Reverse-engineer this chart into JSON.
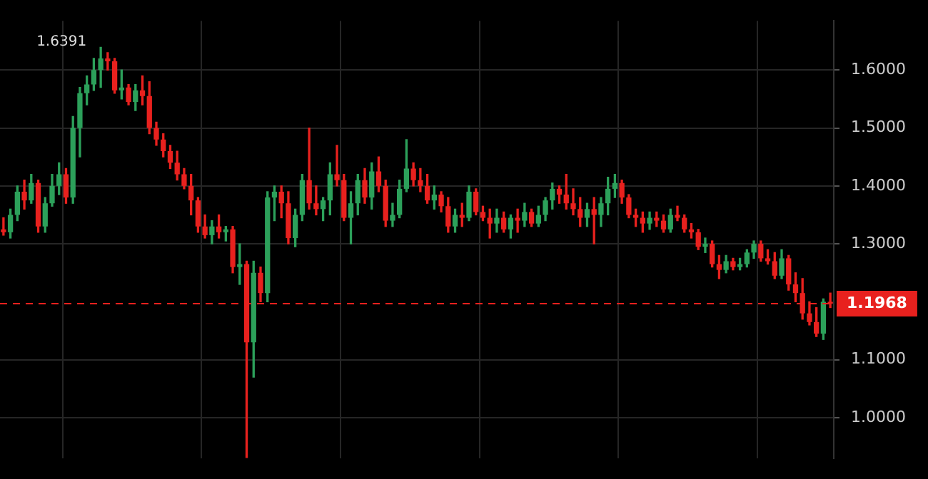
{
  "chart_data": {
    "type": "candlestick",
    "categories": [
      null,
      null,
      null,
      null,
      null,
      null,
      null,
      null,
      null,
      null,
      null,
      null,
      null,
      null,
      null,
      null,
      null,
      null,
      null,
      null,
      null,
      null,
      null,
      null,
      null,
      null,
      null,
      null,
      null,
      null,
      null,
      null,
      null,
      null,
      null,
      null,
      null,
      null,
      null,
      null,
      null,
      null,
      null,
      null,
      null,
      null,
      null,
      null,
      null,
      null,
      null,
      null,
      null,
      null,
      null,
      null,
      null,
      null,
      null,
      null,
      null,
      null,
      null,
      null,
      null,
      null,
      null,
      null,
      null,
      null,
      null,
      null,
      null,
      null,
      null,
      null,
      null,
      null,
      null,
      null,
      null,
      null,
      null,
      null,
      null,
      null,
      null,
      null,
      null,
      null,
      null,
      null,
      null,
      null,
      null,
      null,
      null,
      null,
      null,
      null,
      null,
      null,
      null,
      null,
      null,
      null,
      null,
      null,
      null,
      null,
      null,
      null,
      null,
      null,
      null,
      null,
      null,
      null,
      null,
      null
    ],
    "ohlc": [
      [
        1.325,
        1.345,
        1.315,
        1.32
      ],
      [
        1.32,
        1.36,
        1.31,
        1.35
      ],
      [
        1.35,
        1.4,
        1.34,
        1.39
      ],
      [
        1.39,
        1.41,
        1.36,
        1.375
      ],
      [
        1.375,
        1.42,
        1.37,
        1.405
      ],
      [
        1.405,
        1.41,
        1.32,
        1.33
      ],
      [
        1.33,
        1.38,
        1.32,
        1.37
      ],
      [
        1.37,
        1.42,
        1.365,
        1.4
      ],
      [
        1.4,
        1.44,
        1.385,
        1.42
      ],
      [
        1.42,
        1.43,
        1.37,
        1.38
      ],
      [
        1.38,
        1.52,
        1.37,
        1.5
      ],
      [
        1.5,
        1.57,
        1.45,
        1.56
      ],
      [
        1.56,
        1.59,
        1.54,
        1.575
      ],
      [
        1.575,
        1.62,
        1.565,
        1.6
      ],
      [
        1.6,
        1.6391,
        1.57,
        1.62
      ],
      [
        1.62,
        1.63,
        1.6,
        1.615
      ],
      [
        1.615,
        1.62,
        1.56,
        1.565
      ],
      [
        1.565,
        1.6,
        1.55,
        1.57
      ],
      [
        1.57,
        1.575,
        1.54,
        1.545
      ],
      [
        1.545,
        1.575,
        1.53,
        1.565
      ],
      [
        1.565,
        1.59,
        1.54,
        1.555
      ],
      [
        1.555,
        1.58,
        1.49,
        1.5
      ],
      [
        1.5,
        1.51,
        1.47,
        1.48
      ],
      [
        1.48,
        1.49,
        1.45,
        1.46
      ],
      [
        1.46,
        1.47,
        1.43,
        1.44
      ],
      [
        1.44,
        1.46,
        1.41,
        1.42
      ],
      [
        1.42,
        1.43,
        1.395,
        1.4
      ],
      [
        1.4,
        1.42,
        1.35,
        1.375
      ],
      [
        1.375,
        1.38,
        1.32,
        1.33
      ],
      [
        1.33,
        1.35,
        1.31,
        1.315
      ],
      [
        1.315,
        1.34,
        1.3,
        1.33
      ],
      [
        1.33,
        1.35,
        1.31,
        1.32
      ],
      [
        1.32,
        1.33,
        1.305,
        1.325
      ],
      [
        1.325,
        1.33,
        1.25,
        1.26
      ],
      [
        1.26,
        1.3,
        1.23,
        1.265
      ],
      [
        1.265,
        1.27,
        0.931,
        1.13
      ],
      [
        1.13,
        1.27,
        1.07,
        1.25
      ],
      [
        1.25,
        1.26,
        1.2,
        1.215
      ],
      [
        1.215,
        1.39,
        1.2,
        1.38
      ],
      [
        1.38,
        1.4,
        1.34,
        1.39
      ],
      [
        1.39,
        1.4,
        1.345,
        1.37
      ],
      [
        1.37,
        1.39,
        1.3,
        1.31
      ],
      [
        1.31,
        1.36,
        1.295,
        1.35
      ],
      [
        1.35,
        1.42,
        1.34,
        1.41
      ],
      [
        1.41,
        1.5,
        1.36,
        1.37
      ],
      [
        1.37,
        1.4,
        1.35,
        1.36
      ],
      [
        1.36,
        1.38,
        1.34,
        1.375
      ],
      [
        1.375,
        1.44,
        1.35,
        1.42
      ],
      [
        1.42,
        1.47,
        1.4,
        1.41
      ],
      [
        1.41,
        1.42,
        1.34,
        1.345
      ],
      [
        1.345,
        1.39,
        1.3,
        1.37
      ],
      [
        1.37,
        1.42,
        1.35,
        1.41
      ],
      [
        1.41,
        1.43,
        1.37,
        1.38
      ],
      [
        1.38,
        1.44,
        1.36,
        1.425
      ],
      [
        1.425,
        1.45,
        1.39,
        1.4
      ],
      [
        1.4,
        1.41,
        1.33,
        1.34
      ],
      [
        1.34,
        1.37,
        1.33,
        1.35
      ],
      [
        1.35,
        1.41,
        1.345,
        1.395
      ],
      [
        1.395,
        1.48,
        1.39,
        1.43
      ],
      [
        1.43,
        1.44,
        1.4,
        1.41
      ],
      [
        1.41,
        1.43,
        1.39,
        1.4
      ],
      [
        1.4,
        1.42,
        1.37,
        1.375
      ],
      [
        1.375,
        1.4,
        1.36,
        1.385
      ],
      [
        1.385,
        1.39,
        1.355,
        1.365
      ],
      [
        1.365,
        1.38,
        1.32,
        1.33
      ],
      [
        1.33,
        1.36,
        1.32,
        1.35
      ],
      [
        1.35,
        1.37,
        1.33,
        1.345
      ],
      [
        1.345,
        1.4,
        1.34,
        1.39
      ],
      [
        1.39,
        1.395,
        1.35,
        1.355
      ],
      [
        1.355,
        1.365,
        1.34,
        1.345
      ],
      [
        1.345,
        1.36,
        1.31,
        1.335
      ],
      [
        1.335,
        1.36,
        1.32,
        1.345
      ],
      [
        1.345,
        1.355,
        1.32,
        1.325
      ],
      [
        1.325,
        1.35,
        1.31,
        1.345
      ],
      [
        1.345,
        1.36,
        1.32,
        1.34
      ],
      [
        1.34,
        1.37,
        1.33,
        1.355
      ],
      [
        1.355,
        1.36,
        1.33,
        1.335
      ],
      [
        1.335,
        1.365,
        1.33,
        1.35
      ],
      [
        1.35,
        1.38,
        1.34,
        1.375
      ],
      [
        1.375,
        1.405,
        1.36,
        1.395
      ],
      [
        1.395,
        1.4,
        1.37,
        1.385
      ],
      [
        1.385,
        1.42,
        1.36,
        1.37
      ],
      [
        1.37,
        1.395,
        1.35,
        1.36
      ],
      [
        1.36,
        1.38,
        1.33,
        1.345
      ],
      [
        1.345,
        1.37,
        1.33,
        1.36
      ],
      [
        1.36,
        1.38,
        1.3,
        1.35
      ],
      [
        1.35,
        1.38,
        1.33,
        1.37
      ],
      [
        1.37,
        1.415,
        1.35,
        1.395
      ],
      [
        1.395,
        1.42,
        1.38,
        1.405
      ],
      [
        1.405,
        1.41,
        1.37,
        1.38
      ],
      [
        1.38,
        1.385,
        1.345,
        1.35
      ],
      [
        1.35,
        1.36,
        1.33,
        1.345
      ],
      [
        1.345,
        1.355,
        1.32,
        1.335
      ],
      [
        1.335,
        1.355,
        1.325,
        1.345
      ],
      [
        1.345,
        1.355,
        1.33,
        1.34
      ],
      [
        1.34,
        1.35,
        1.32,
        1.325
      ],
      [
        1.325,
        1.36,
        1.32,
        1.35
      ],
      [
        1.35,
        1.365,
        1.34,
        1.345
      ],
      [
        1.345,
        1.35,
        1.32,
        1.325
      ],
      [
        1.325,
        1.335,
        1.31,
        1.32
      ],
      [
        1.32,
        1.325,
        1.29,
        1.295
      ],
      [
        1.295,
        1.31,
        1.285,
        1.3
      ],
      [
        1.3,
        1.305,
        1.26,
        1.265
      ],
      [
        1.265,
        1.28,
        1.24,
        1.255
      ],
      [
        1.255,
        1.28,
        1.25,
        1.27
      ],
      [
        1.27,
        1.275,
        1.255,
        1.26
      ],
      [
        1.26,
        1.275,
        1.255,
        1.265
      ],
      [
        1.265,
        1.29,
        1.26,
        1.285
      ],
      [
        1.285,
        1.305,
        1.275,
        1.3
      ],
      [
        1.3,
        1.305,
        1.27,
        1.275
      ],
      [
        1.275,
        1.29,
        1.265,
        1.27
      ],
      [
        1.27,
        1.285,
        1.24,
        1.245
      ],
      [
        1.245,
        1.29,
        1.24,
        1.275
      ],
      [
        1.275,
        1.28,
        1.22,
        1.23
      ],
      [
        1.23,
        1.25,
        1.2,
        1.215
      ],
      [
        1.215,
        1.24,
        1.17,
        1.18
      ],
      [
        1.18,
        1.2,
        1.16,
        1.165
      ],
      [
        1.165,
        1.19,
        1.14,
        1.145
      ],
      [
        1.145,
        1.205,
        1.135,
        1.2
      ],
      [
        1.2,
        1.215,
        1.19,
        1.1968
      ]
    ],
    "colors": [
      "#e8211e",
      "#2ca05a",
      "#2ca05a",
      "#e8211e",
      "#2ca05a",
      "#e8211e",
      "#2ca05a",
      "#2ca05a",
      "#2ca05a",
      "#e8211e",
      "#2ca05a",
      "#2ca05a",
      "#2ca05a",
      "#2ca05a",
      "#2ca05a",
      "#e8211e",
      "#e8211e",
      "#2ca05a",
      "#e8211e",
      "#2ca05a",
      "#e8211e",
      "#e8211e",
      "#e8211e",
      "#e8211e",
      "#e8211e",
      "#e8211e",
      "#e8211e",
      "#e8211e",
      "#e8211e",
      "#e8211e",
      "#2ca05a",
      "#e8211e",
      "#2ca05a",
      "#e8211e",
      "#2ca05a",
      "#e8211e",
      "#2ca05a",
      "#e8211e",
      "#2ca05a",
      "#2ca05a",
      "#e8211e",
      "#e8211e",
      "#2ca05a",
      "#2ca05a",
      "#e8211e",
      "#e8211e",
      "#2ca05a",
      "#2ca05a",
      "#e8211e",
      "#e8211e",
      "#2ca05a",
      "#2ca05a",
      "#e8211e",
      "#2ca05a",
      "#e8211e",
      "#e8211e",
      "#2ca05a",
      "#2ca05a",
      "#2ca05a",
      "#e8211e",
      "#e8211e",
      "#e8211e",
      "#2ca05a",
      "#e8211e",
      "#e8211e",
      "#2ca05a",
      "#e8211e",
      "#2ca05a",
      "#e8211e",
      "#e8211e",
      "#e8211e",
      "#2ca05a",
      "#e8211e",
      "#2ca05a",
      "#e8211e",
      "#2ca05a",
      "#e8211e",
      "#2ca05a",
      "#2ca05a",
      "#2ca05a",
      "#e8211e",
      "#e8211e",
      "#e8211e",
      "#e8211e",
      "#2ca05a",
      "#e8211e",
      "#2ca05a",
      "#2ca05a",
      "#2ca05a",
      "#e8211e",
      "#e8211e",
      "#e8211e",
      "#e8211e",
      "#2ca05a",
      "#e8211e",
      "#e8211e",
      "#2ca05a",
      "#e8211e",
      "#e8211e",
      "#e8211e",
      "#e8211e",
      "#2ca05a",
      "#e8211e",
      "#e8211e",
      "#2ca05a",
      "#e8211e",
      "#2ca05a",
      "#2ca05a",
      "#2ca05a",
      "#e8211e",
      "#e8211e",
      "#e8211e",
      "#2ca05a",
      "#e8211e",
      "#e8211e",
      "#e8211e",
      "#e8211e",
      "#e8211e",
      "#2ca05a",
      "#e8211e"
    ],
    "ylim": [
      0.93,
      1.685
    ],
    "yticks": [
      {
        "value": 1.0,
        "label": "1.0000"
      },
      {
        "value": 1.1,
        "label": "1.1000"
      },
      {
        "value": 1.3,
        "label": "1.3000"
      },
      {
        "value": 1.4,
        "label": "1.4000"
      },
      {
        "value": 1.5,
        "label": "1.5000"
      },
      {
        "value": 1.6,
        "label": "1.6000"
      }
    ],
    "ref_lines": [
      {
        "axis": "y",
        "value": 1.1968,
        "label": "1.1968",
        "color": "#e8211e",
        "line_style": "dashed"
      }
    ],
    "annotations": [
      "1.6391"
    ],
    "grid": true,
    "legend": false
  }
}
